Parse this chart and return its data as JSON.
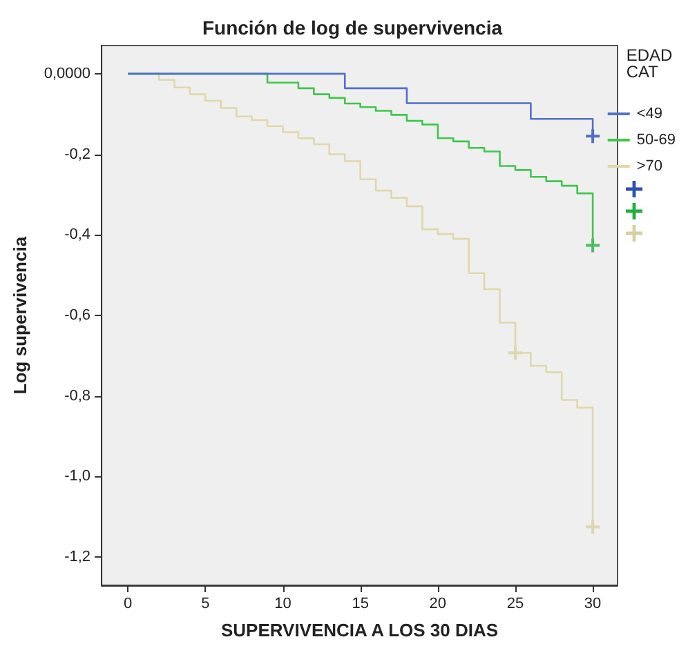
{
  "chart_data": {
    "type": "step",
    "title": "Función de log de supervivencia",
    "xlabel": "SUPERVIVENCIA A LOS 30 DIAS",
    "ylabel": "Log supervivencia",
    "legend_title": "EDAD CAT",
    "legend": "right",
    "grid": false,
    "xlim": [
      -1.7,
      31.6
    ],
    "xticks": [
      0,
      5,
      10,
      15,
      20,
      25,
      30
    ],
    "ylim": [
      -1.27,
      0.07
    ],
    "yticks": [
      {
        "value": 0,
        "label": "0,0000"
      },
      {
        "value": -0.2,
        "label": "-0,2"
      },
      {
        "value": -0.4,
        "label": "-0,4"
      },
      {
        "value": -0.6,
        "label": "-0,6"
      },
      {
        "value": -0.8,
        "label": "-0,8"
      },
      {
        "value": -1,
        "label": "-1,0"
      },
      {
        "value": -1.2,
        "label": "-1,2"
      }
    ],
    "series": [
      {
        "name": "<49",
        "color": "#5070c8",
        "x": [
          0,
          14,
          18,
          26,
          30
        ],
        "values": [
          0,
          -0.036,
          -0.073,
          -0.112,
          -0.155
        ]
      },
      {
        "name": "50-69",
        "color": "#3cc84a",
        "x": [
          0,
          9,
          11,
          12,
          13,
          14,
          15,
          16,
          17,
          18,
          19,
          20,
          21,
          22,
          23,
          24,
          25,
          26,
          27,
          28,
          29,
          30
        ],
        "values": [
          0,
          -0.022,
          -0.036,
          -0.051,
          -0.06,
          -0.074,
          -0.083,
          -0.092,
          -0.102,
          -0.117,
          -0.126,
          -0.16,
          -0.168,
          -0.184,
          -0.193,
          -0.229,
          -0.239,
          -0.256,
          -0.267,
          -0.278,
          -0.297,
          -0.426
        ]
      },
      {
        "name": ">70",
        "color": "#e0d8a8",
        "x": [
          0,
          2,
          3,
          4,
          5,
          6,
          7,
          8,
          9,
          10,
          11,
          12,
          13,
          14,
          15,
          16,
          17,
          18,
          19,
          20,
          21,
          22,
          23,
          24,
          25,
          26,
          27,
          28,
          29,
          30
        ],
        "values": [
          0,
          -0.015,
          -0.034,
          -0.051,
          -0.067,
          -0.085,
          -0.106,
          -0.115,
          -0.13,
          -0.145,
          -0.16,
          -0.175,
          -0.2,
          -0.217,
          -0.262,
          -0.29,
          -0.308,
          -0.329,
          -0.386,
          -0.398,
          -0.41,
          -0.495,
          -0.535,
          -0.618,
          -0.693,
          -0.725,
          -0.741,
          -0.81,
          -0.829,
          -1.125
        ]
      },
      {
        "color": "#2c50b8",
        "type": "scatter",
        "marker": "cross",
        "x": [
          30
        ],
        "values": [
          -0.155
        ]
      },
      {
        "color": "#20b040",
        "type": "scatter",
        "marker": "cross",
        "x": [
          30
        ],
        "values": [
          -0.426
        ]
      },
      {
        "color": "#d8d0a0",
        "type": "scatter",
        "marker": "cross",
        "x": [
          25,
          30
        ],
        "values": [
          -0.693,
          -1.125
        ]
      }
    ]
  }
}
